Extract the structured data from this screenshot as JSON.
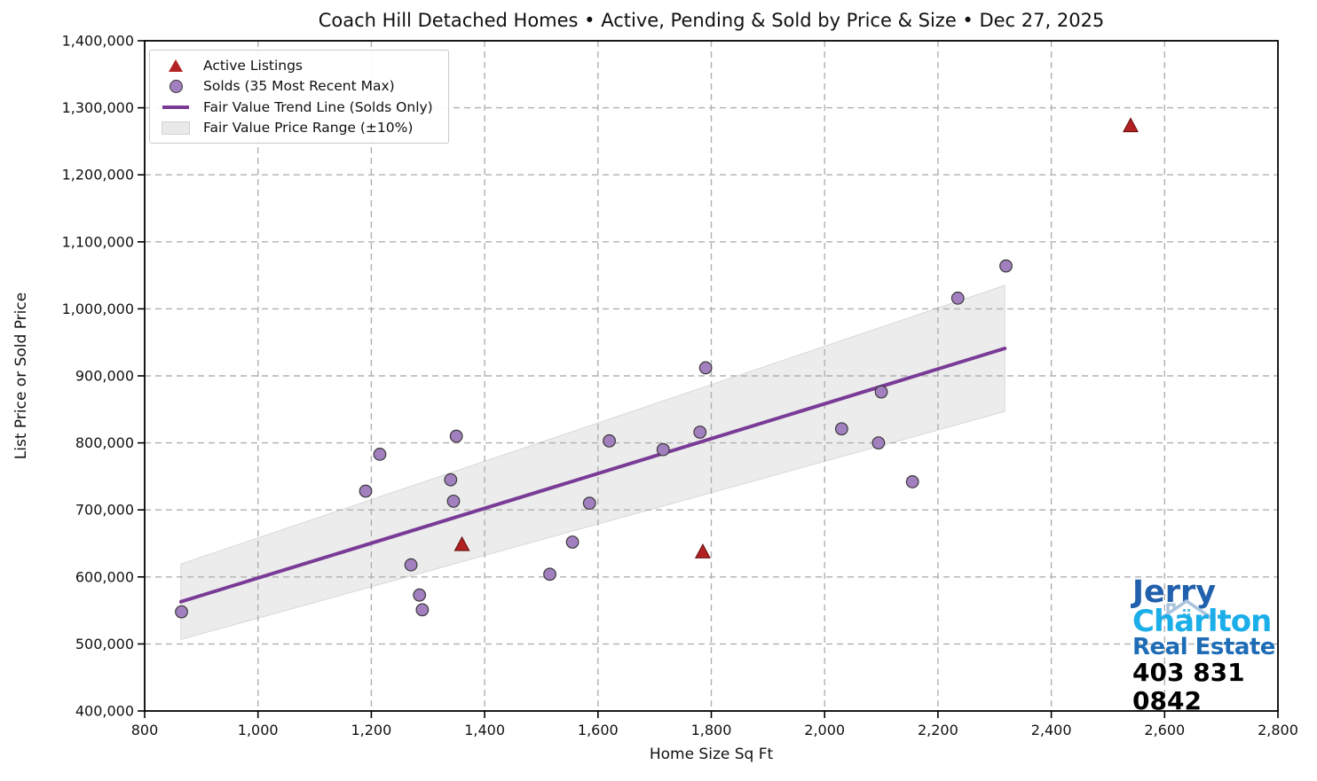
{
  "title": "Coach Hill Detached Homes • Active, Pending & Sold by Price & Size • Dec 27, 2025",
  "legend": {
    "items": [
      {
        "label": "Active Listings",
        "marker": "triangle"
      },
      {
        "label": "Solds (35 Most Recent Max)",
        "marker": "circle"
      },
      {
        "label": "Fair Value Trend Line (Solds Only)",
        "marker": "line"
      },
      {
        "label": "Fair Value Price Range (±10%)",
        "marker": "band"
      }
    ]
  },
  "logo": {
    "jerry": "Jerry",
    "charlton": "Charlton",
    "real_estate": "Real Estate",
    "phone": "403 831 0842",
    "colors": {
      "jerry": "#2160ac",
      "charlton": "#1caee9",
      "real_estate": "#1d6cb5",
      "phone": "#000000",
      "roof": "#a9c4dc"
    }
  },
  "chart_data": {
    "type": "scatter",
    "title": "Coach Hill Detached Homes • Active, Pending & Sold by Price & Size • Dec 27, 2025",
    "xlabel": "Home Size Sq Ft",
    "ylabel": "List Price or Sold Price",
    "xlim": [
      800,
      2800
    ],
    "ylim": [
      400000,
      1400000
    ],
    "grid": "dashed",
    "legend_position": "upper-left",
    "x_ticks": [
      800,
      1000,
      1200,
      1400,
      1600,
      1800,
      2000,
      2200,
      2400,
      2600,
      2800
    ],
    "x_tick_labels": [
      "800",
      "1,000",
      "1,200",
      "1,400",
      "1,600",
      "1,800",
      "2,000",
      "2,200",
      "2,400",
      "2,600",
      "2,800"
    ],
    "y_ticks": [
      400000,
      500000,
      600000,
      700000,
      800000,
      900000,
      1000000,
      1100000,
      1200000,
      1300000,
      1400000
    ],
    "y_tick_labels": [
      "400,000",
      "500,000",
      "600,000",
      "700,000",
      "800,000",
      "900,000",
      "1,000,000",
      "1,100,000",
      "1,200,000",
      "1,300,000",
      "1,400,000"
    ],
    "colors": {
      "sold_fill": "#a27fbe",
      "sold_edge": "#3a3a3a",
      "active_fill": "#b22222",
      "active_edge": "#701515",
      "trend_line": "#7a3b96",
      "band_fill": "#e9e9e9",
      "band_edge": "#d8d8d8",
      "grid": "#b0b0b0",
      "spine": "#000000"
    },
    "series": [
      {
        "name": "Active Listings",
        "marker": "triangle",
        "points": [
          [
            1360,
            648000
          ],
          [
            1785,
            637000
          ],
          [
            2540,
            1273000
          ]
        ]
      },
      {
        "name": "Solds (35 Most Recent Max)",
        "marker": "circle",
        "points": [
          [
            865,
            548000
          ],
          [
            1190,
            728000
          ],
          [
            1215,
            783000
          ],
          [
            1270,
            618000
          ],
          [
            1285,
            573000
          ],
          [
            1290,
            551000
          ],
          [
            1340,
            745000
          ],
          [
            1345,
            713000
          ],
          [
            1350,
            810000
          ],
          [
            1515,
            604000
          ],
          [
            1555,
            652000
          ],
          [
            1585,
            710000
          ],
          [
            1620,
            803000
          ],
          [
            1715,
            790000
          ],
          [
            1780,
            816000
          ],
          [
            1790,
            912000
          ],
          [
            2030,
            821000
          ],
          [
            2095,
            800000
          ],
          [
            2100,
            876000
          ],
          [
            2155,
            742000
          ],
          [
            2235,
            1016000
          ],
          [
            2320,
            1064000
          ]
        ]
      },
      {
        "name": "Fair Value Trend Line (Solds Only)",
        "marker": "trendline",
        "points": [
          [
            864,
            563000
          ],
          [
            2318,
            941000
          ]
        ]
      },
      {
        "name": "Fair Value Price Range (±10%)",
        "marker": "band",
        "band_pct": 0.1,
        "base": [
          [
            864,
            563000
          ],
          [
            2318,
            941000
          ]
        ]
      }
    ]
  }
}
